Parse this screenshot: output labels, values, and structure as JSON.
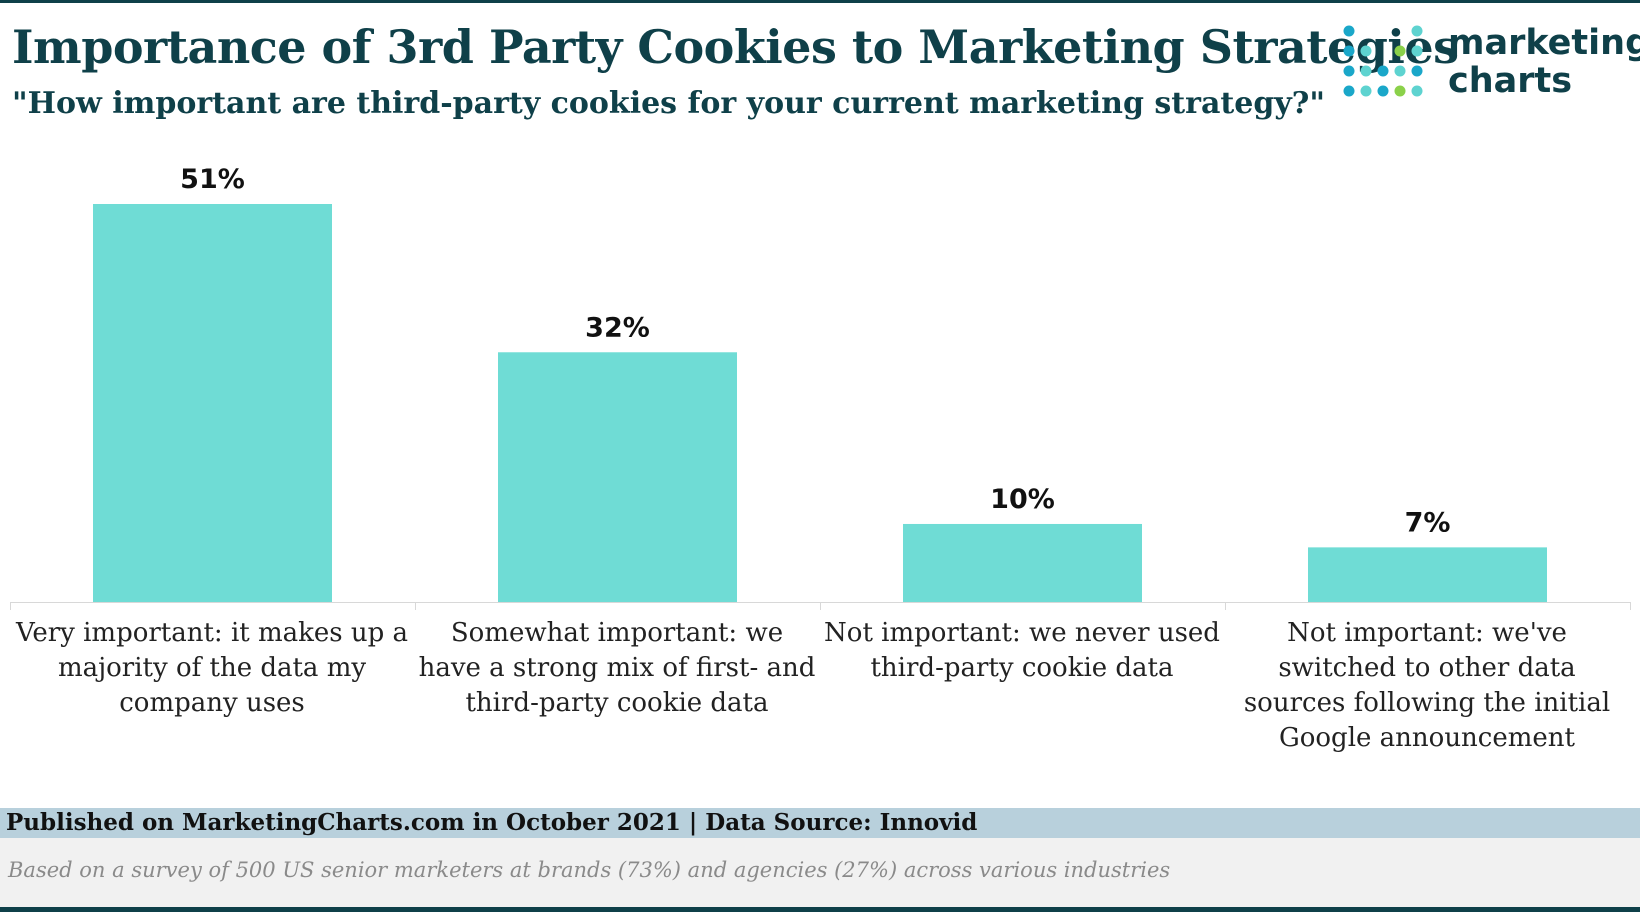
{
  "header": {
    "title": "Importance of 3rd Party Cookies to Marketing Strategies",
    "subtitle": "\"How important are third-party cookies for your current marketing strategy?\""
  },
  "logo": {
    "line1": "marketing",
    "line2": "charts"
  },
  "chart_data": {
    "type": "bar",
    "title": "Importance of 3rd Party Cookies to Marketing Strategies",
    "subtitle": "\"How important are third-party cookies for your current marketing strategy?\"",
    "categories": [
      "Very important: it makes up a majority of the data my company uses",
      "Somewhat important: we have a strong mix of first- and third-party cookie data",
      "Not important: we never used third-party cookie data",
      "Not important: we've switched to other data sources following the initial Google announcement"
    ],
    "values": [
      51,
      32,
      10,
      7
    ],
    "value_labels": [
      "51%",
      "32%",
      "10%",
      "7%"
    ],
    "xlabel": "",
    "ylabel": "",
    "ylim": [
      0,
      51
    ],
    "grid": false,
    "bar_color": "#6fdcd5"
  },
  "footer": {
    "published": "Published on MarketingCharts.com in October 2021 | Data Source: Innovid",
    "note": "Based on a survey of 500 US senior marketers at brands (73%) and agencies (27%) across various industries"
  },
  "colors": {
    "title": "#0f4049",
    "bar": "#6fdcd5",
    "footer_band": "#b8d0dc",
    "logo_dots": [
      "#1aa7c9",
      "#5ed3d0",
      "#8bd14a"
    ]
  }
}
